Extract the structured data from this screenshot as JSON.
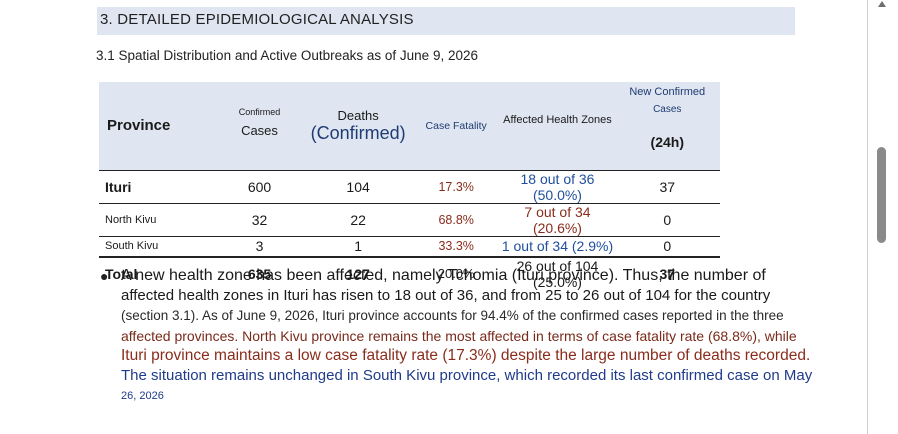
{
  "section": {
    "title": "3. DETAILED EPIDEMIOLOGICAL ANALYSIS",
    "subtitle": "3.1 Spatial Distribution and Active Outbreaks as of June 9, 2026"
  },
  "table": {
    "headers": {
      "province": "Province",
      "confirmed_top": "Confirmed",
      "confirmed_bottom": "Cases",
      "deaths_top": "Deaths",
      "deaths_bottom": "(Confirmed)",
      "case_fatality": "Case Fatality",
      "affected_zones": "Affected Health Zones",
      "new_line1": "New Confirmed",
      "new_line2": "Cases",
      "new_line3": "(24h)"
    },
    "rows": [
      {
        "province": "Ituri",
        "confirmed": "600",
        "deaths": "104",
        "fatality": "17.3%",
        "zones": "18 out of 36 (50.0%)",
        "new": "37"
      },
      {
        "province": "North Kivu",
        "confirmed": "32",
        "deaths": "22",
        "fatality": "68.8%",
        "zones": "7 out of 34 (20.6%)",
        "new": "0"
      },
      {
        "province": "South Kivu",
        "confirmed": "3",
        "deaths": "1",
        "fatality": "33.3%",
        "zones": "1 out of 34 (2.9%)",
        "new": "0"
      }
    ],
    "total": {
      "province": "Total",
      "confirmed": "635",
      "deaths": "127",
      "fatality": "20.0%",
      "zones": "26 out of 104 (25.0%)",
      "new": "37"
    }
  },
  "bullet": {
    "lines": [
      "A new health zone has been affected, namely Tchomia (Ituri province). Thus, the number of",
      "affected health zones in Ituri has risen to 18 out of 36, and from 25 to 26 out of 104 for the country",
      "(section 3.1). As of June 9, 2026, Ituri province accounts for 94.4% of the confirmed cases reported in the three",
      "affected provinces. North Kivu province remains the most affected in terms of case fatality rate (68.8%), while",
      "Ituri province maintains a low case fatality rate (17.3%) despite the large number of deaths recorded.",
      "The situation remains unchanged in South Kivu province, which recorded its last confirmed case on May",
      "26, 2026"
    ]
  },
  "icons": {
    "scroll_up": "triangle-up-icon",
    "bullet": "bullet-dot-icon"
  },
  "colors": {
    "header_band": "#dfe6f1",
    "link_blue": "#1f4f9c",
    "accent_brown": "#8a2c1c"
  }
}
